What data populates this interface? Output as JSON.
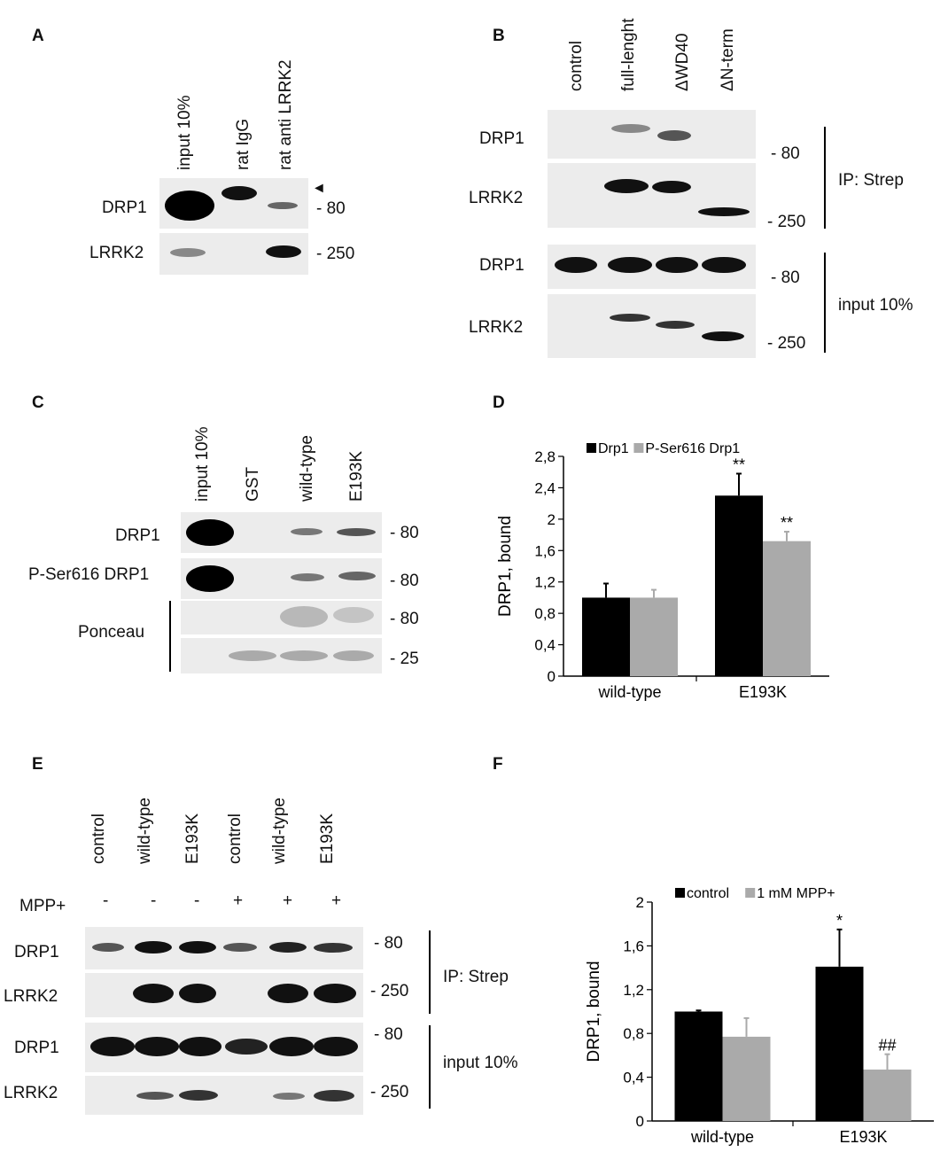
{
  "panelA": {
    "label": "A",
    "lanes": [
      "input 10%",
      "rat IgG",
      "rat anti LRRK2"
    ],
    "rows": [
      "DRP1",
      "LRRK2"
    ],
    "marker_arrow": "◄",
    "mw": [
      "- 80",
      "- 250"
    ]
  },
  "panelB": {
    "label": "B",
    "lanes": [
      "control",
      "full-lenght",
      "ΔWD40",
      "ΔN-term"
    ],
    "rows": [
      "DRP1",
      "LRRK2",
      "DRP1",
      "LRRK2"
    ],
    "mw": [
      "- 80",
      "- 250",
      "- 80",
      "- 250"
    ],
    "groups": [
      "IP: Strep",
      "input 10%"
    ]
  },
  "panelC": {
    "label": "C",
    "lanes": [
      "input 10%",
      "GST",
      "wild-type",
      "E193K"
    ],
    "rows": [
      "DRP1",
      "P-Ser616 DRP1",
      "Ponceau"
    ],
    "mw": [
      "- 80",
      "- 80",
      "- 80",
      "- 25"
    ]
  },
  "panelE": {
    "label": "E",
    "lanes": [
      "control",
      "wild-type",
      "E193K",
      "control",
      "wild-type",
      "E193K"
    ],
    "mpp_label": "MPP+",
    "mpp_signs": [
      "-",
      "-",
      "-",
      "+",
      "+",
      "+"
    ],
    "rows": [
      "DRP1",
      "LRRK2",
      "DRP1",
      "LRRK2"
    ],
    "mw": [
      "- 80",
      "- 250",
      "- 80",
      "- 250"
    ],
    "groups": [
      "IP: Strep",
      "input 10%"
    ]
  },
  "chart_data": [
    {
      "panel": "D",
      "type": "bar",
      "categories": [
        "wild-type",
        "E193K"
      ],
      "series": [
        {
          "name": "Drp1",
          "values": [
            1.0,
            2.3
          ],
          "errors": [
            0.18,
            0.28
          ],
          "annotations": [
            "",
            "**"
          ],
          "color": "#000000"
        },
        {
          "name": "P-Ser616 Drp1",
          "values": [
            1.0,
            1.72
          ],
          "errors": [
            0.1,
            0.12
          ],
          "annotations": [
            "",
            "**"
          ],
          "color": "#aaaaaa"
        }
      ],
      "ylabel": "DRP1, bound",
      "ylim": [
        0,
        2.8
      ],
      "yticks": [
        "0",
        "0,4",
        "0,8",
        "1,2",
        "1,6",
        "2",
        "2,4",
        "2,8"
      ],
      "legend": "top"
    },
    {
      "panel": "F",
      "type": "bar",
      "categories": [
        "wild-type",
        "E193K"
      ],
      "series": [
        {
          "name": "control",
          "values": [
            1.0,
            1.41
          ],
          "errors": [
            0.01,
            0.34
          ],
          "annotations": [
            "",
            "*"
          ],
          "color": "#000000"
        },
        {
          "name": "1 mM MPP+",
          "values": [
            0.77,
            0.47
          ],
          "errors": [
            0.17,
            0.14
          ],
          "annotations": [
            "",
            "##"
          ],
          "color": "#aaaaaa"
        }
      ],
      "ylabel": "DRP1, bound",
      "ylim": [
        0,
        2
      ],
      "yticks": [
        "0",
        "0,4",
        "0,8",
        "1,2",
        "1,6",
        "2"
      ],
      "legend": "top"
    }
  ]
}
